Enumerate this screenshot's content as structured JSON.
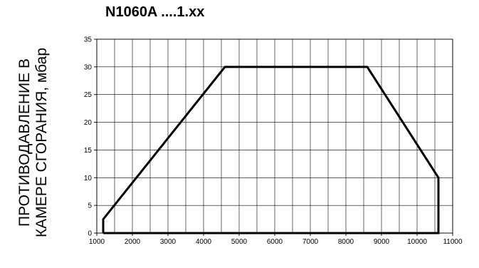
{
  "chart_data": {
    "type": "line",
    "title": "N1060A ....1.xx",
    "ylabel_lines": [
      "ПРОТИВОДАВЛЕНИЕ В",
      "КАМЕРЕ СГОРАНИЯ, мбар"
    ],
    "xlabel": "",
    "xlim": [
      1000,
      11000
    ],
    "ylim": [
      0,
      35
    ],
    "x_major_ticks": [
      1000,
      2000,
      3000,
      4000,
      5000,
      6000,
      7000,
      8000,
      9000,
      10000,
      11000
    ],
    "x_gridlines": [
      1000,
      1500,
      2000,
      2500,
      3000,
      3500,
      4000,
      4500,
      5000,
      5500,
      6000,
      6500,
      7000,
      7500,
      8000,
      8500,
      9000,
      9500,
      10000,
      10500,
      11000
    ],
    "y_ticks": [
      0,
      5,
      10,
      15,
      20,
      25,
      30,
      35
    ],
    "grid": true,
    "series": [
      {
        "x": [
          1180,
          1180,
          4600,
          8600,
          10600,
          10600,
          1180
        ],
        "y": [
          0,
          2.5,
          30,
          30,
          10,
          0,
          0
        ],
        "color": "#000000"
      }
    ]
  }
}
